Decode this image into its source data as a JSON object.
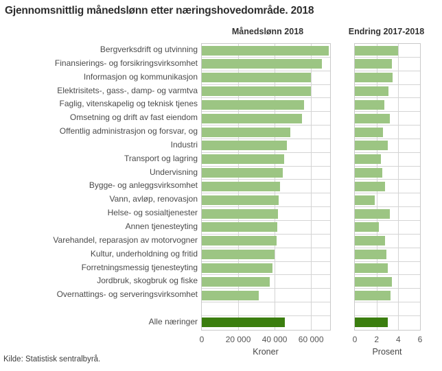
{
  "title": "Gjennomsnittlig månedslønn etter næringshovedområde. 2018",
  "source": "Kilde: Statistisk sentralbyrå.",
  "colors": {
    "bar_light_green": "#9cc583",
    "bar_dark_green": "#3b7e0f",
    "grid": "#d4d4d4",
    "text": "#4a4a4a"
  },
  "chart_data": [
    {
      "type": "bar",
      "orientation": "horizontal",
      "title": "Månedslønn 2018",
      "xlabel": "Kroner",
      "xlim": [
        0,
        70500
      ],
      "xticks": [
        0,
        20000,
        40000,
        60000
      ],
      "xtick_labels": [
        "0",
        "20 000",
        "40 000",
        "60 000"
      ],
      "grid": true,
      "bar_color": "#9cc583",
      "summary_bar_color": "#3b7e0f",
      "categories": [
        "Bergverksdrift og utvinning",
        "Finansierings- og forsikringsvirksomhet",
        "Informasjon og kommunikasjon",
        "Elektrisitets-, gass-, damp- og varmtva",
        "Faglig, vitenskapelig og teknisk tjenes",
        "Omsetning og drift av fast eiendom",
        "Offentlig administrasjon og forsvar, og",
        "Industri",
        "Transport og lagring",
        "Undervisning",
        "Bygge- og anleggsvirksomhet",
        "Vann, avløp, renovasjon",
        "Helse- og sosialtjenester",
        "Annen tjenesteyting",
        "Varehandel, reparasjon av motorvogner",
        "Kultur, underholdning og fritid",
        "Forretningsmessig tjenesteyting",
        "Jordbruk, skogbruk og fiske",
        "Overnattings- og serveringsvirksomhet"
      ],
      "values": [
        69900,
        66000,
        59900,
        59800,
        56200,
        55000,
        48600,
        46700,
        45200,
        44600,
        43100,
        42100,
        41700,
        41500,
        41000,
        40100,
        39000,
        37400,
        31100
      ],
      "summary_category": "Alle næringer",
      "summary_value": 45600
    },
    {
      "type": "bar",
      "orientation": "horizontal",
      "title": "Endring 2017-2018",
      "xlabel": "Prosent",
      "xlim": [
        0,
        6
      ],
      "xticks": [
        0,
        2,
        4,
        6
      ],
      "xtick_labels": [
        "0",
        "2",
        "4",
        "6"
      ],
      "grid": true,
      "bar_color": "#9cc583",
      "summary_bar_color": "#3b7e0f",
      "categories": [
        "Bergverksdrift og utvinning",
        "Finansierings- og forsikringsvirksomhet",
        "Informasjon og kommunikasjon",
        "Elektrisitets-, gass-, damp- og varmtva",
        "Faglig, vitenskapelig og teknisk tjenes",
        "Omsetning og drift av fast eiendom",
        "Offentlig administrasjon og forsvar, og",
        "Industri",
        "Transport og lagring",
        "Undervisning",
        "Bygge- og anleggsvirksomhet",
        "Vann, avløp, renovasjon",
        "Helse- og sosialtjenester",
        "Annen tjenesteyting",
        "Varehandel, reparasjon av motorvogner",
        "Kultur, underholdning og fritid",
        "Forretningsmessig tjenesteyting",
        "Jordbruk, skogbruk og fiske",
        "Overnattings- og serveringsvirksomhet"
      ],
      "values": [
        4.0,
        3.4,
        3.5,
        3.1,
        2.7,
        3.2,
        2.6,
        3.0,
        2.4,
        2.5,
        2.8,
        1.8,
        3.2,
        2.2,
        2.8,
        2.9,
        3.0,
        3.4,
        3.3
      ],
      "summary_category": "Alle næringer",
      "summary_value": 3.0
    }
  ]
}
